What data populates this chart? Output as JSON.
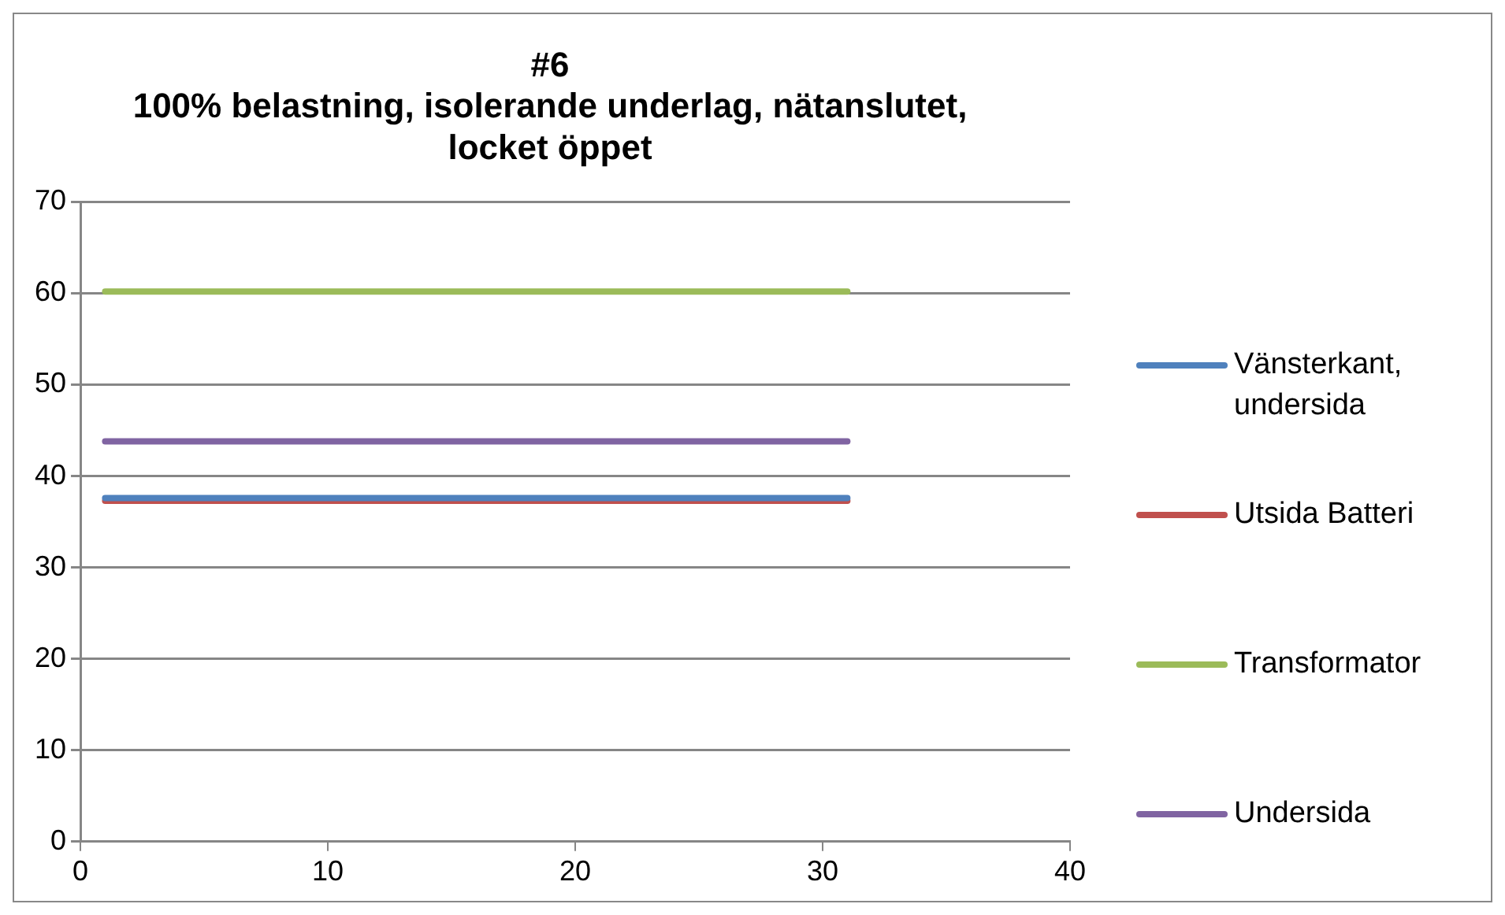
{
  "chart_data": {
    "type": "line",
    "title": "#6\n100% belastning, isolerande underlag, nätanslutet,\nlocket öppet",
    "x": [
      1,
      31
    ],
    "series": [
      {
        "name": "Vänsterkant, undersida",
        "color": "#4f81bd",
        "values": [
          37.6,
          37.6
        ]
      },
      {
        "name": "Utsida Batteri",
        "color": "#c0504d",
        "values": [
          37.3,
          37.3
        ]
      },
      {
        "name": "Transformator",
        "color": "#9bbb59",
        "values": [
          60.2,
          60.2
        ]
      },
      {
        "name": "Undersida",
        "color": "#8064a2",
        "values": [
          43.8,
          43.8
        ]
      }
    ],
    "xlim": [
      0,
      40
    ],
    "xticks": [
      0,
      10,
      20,
      30,
      40
    ],
    "ylim": [
      0,
      70
    ],
    "yticks": [
      0,
      10,
      20,
      30,
      40,
      50,
      60,
      70
    ],
    "grid": "y",
    "legend": "right",
    "marker": "none",
    "line_style": "solid"
  }
}
